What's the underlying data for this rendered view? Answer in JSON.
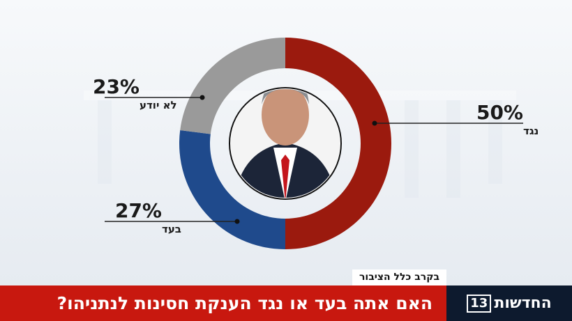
{
  "chart_data": {
    "type": "donut",
    "title": "האם אתה בעד או נגד הענקת חסינות לנתניהו?",
    "subtitle": "בקרב כלל הציבור",
    "categories": [
      "נגד",
      "בעד",
      "לא יודע"
    ],
    "values": [
      50,
      27,
      23
    ],
    "value_labels": [
      "50%",
      "27%",
      "23%"
    ],
    "colors": [
      "#9b1a0e",
      "#1f4a8c",
      "#9a9a9a"
    ]
  },
  "branding": {
    "name": "החדשות",
    "number": "13"
  }
}
